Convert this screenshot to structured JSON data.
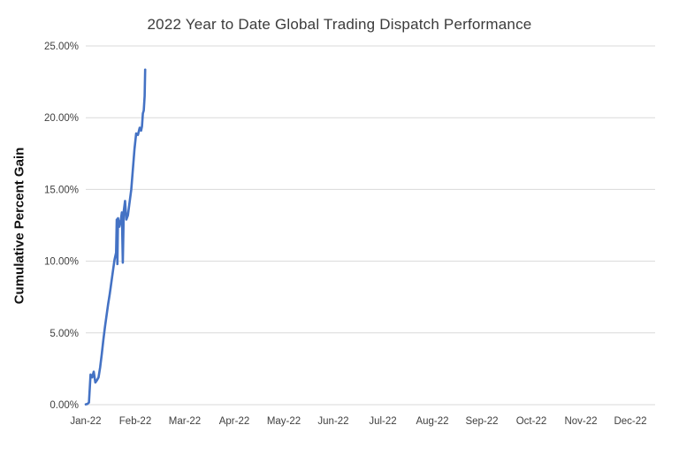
{
  "chart_data": {
    "type": "line",
    "title": "2022 Year to Date Global Trading Dispatch Performance",
    "ylabel": "Cumulative Percent Gain",
    "xlabel": "",
    "x_tick_labels": [
      "Jan-22",
      "Feb-22",
      "Mar-22",
      "Apr-22",
      "May-22",
      "Jun-22",
      "Jul-22",
      "Aug-22",
      "Sep-22",
      "Oct-22",
      "Nov-22",
      "Dec-22"
    ],
    "y_tick_labels": [
      "0.00%",
      "5.00%",
      "10.00%",
      "15.00%",
      "20.00%",
      "25.00%"
    ],
    "ylim": [
      0,
      25
    ],
    "y_tick_step": 5,
    "grid": "horizontal",
    "legend": "none",
    "colors": {
      "line": "#4472C4",
      "grid": "#D9D9D9",
      "tick_text": "#404040",
      "title_text": "#3b3b3b"
    },
    "x_unit": "days since Jan 1, 2022 (plotted on a Jan-22..Dec-22 month axis)",
    "series": [
      {
        "name": "Cumulative Percent Gain",
        "points": [
          [
            0,
            0.02
          ],
          [
            1,
            0.05
          ],
          [
            2,
            0.15
          ],
          [
            3,
            2.1
          ],
          [
            4,
            1.9
          ],
          [
            5,
            2.3
          ],
          [
            6,
            1.55
          ],
          [
            7,
            1.7
          ],
          [
            8,
            1.9
          ],
          [
            9,
            2.6
          ],
          [
            10,
            3.5
          ],
          [
            11,
            4.5
          ],
          [
            12,
            5.4
          ],
          [
            13,
            6.2
          ],
          [
            14,
            7.0
          ],
          [
            15,
            7.7
          ],
          [
            16,
            8.5
          ],
          [
            17,
            9.3
          ],
          [
            18,
            10.1
          ],
          [
            19,
            10.6
          ],
          [
            19.4,
            12.9
          ],
          [
            19.8,
            9.8
          ],
          [
            20.2,
            13.0
          ],
          [
            21,
            12.4
          ],
          [
            22,
            12.9
          ],
          [
            22.6,
            13.4
          ],
          [
            23.2,
            9.9
          ],
          [
            23.8,
            13.5
          ],
          [
            24.6,
            14.2
          ],
          [
            25.4,
            12.9
          ],
          [
            26.4,
            13.2
          ],
          [
            27.2,
            13.9
          ],
          [
            28.5,
            15.0
          ],
          [
            29.5,
            16.4
          ],
          [
            30.5,
            17.8
          ],
          [
            31.5,
            18.9
          ],
          [
            32.5,
            18.8
          ],
          [
            33.5,
            19.3
          ],
          [
            34.3,
            19.1
          ],
          [
            34.8,
            19.4
          ],
          [
            35.3,
            20.3
          ],
          [
            35.8,
            20.5
          ],
          [
            36.3,
            21.5
          ],
          [
            36.6,
            23.35
          ]
        ]
      }
    ]
  }
}
